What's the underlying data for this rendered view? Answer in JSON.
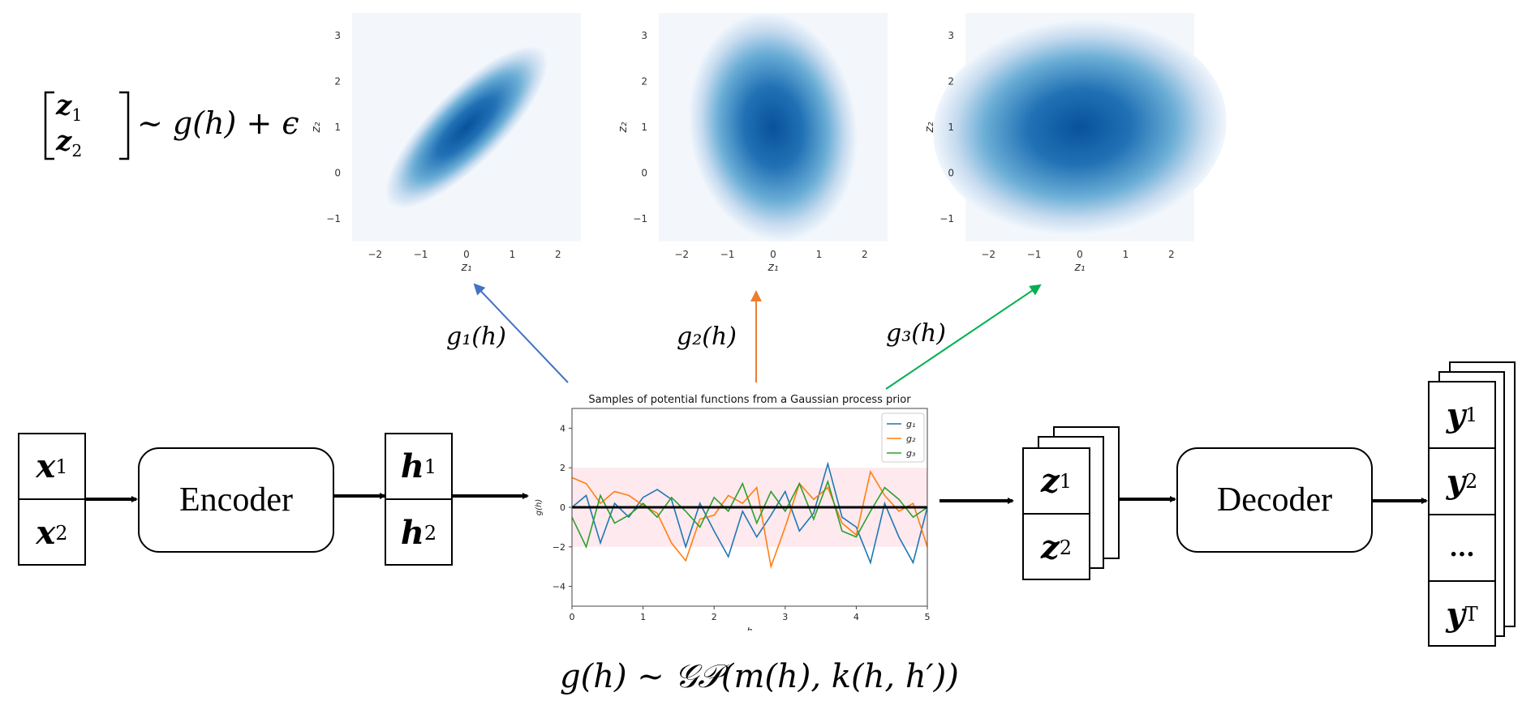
{
  "top_formula": {
    "lhs_1": "z",
    "lhs_1_sub": "1",
    "lhs_2": "z",
    "lhs_2_sub": "2",
    "rhs": "~ g(h) + ϵ"
  },
  "contour_plots": [
    {
      "xlabel": "z₁",
      "ylabel": "z₂",
      "x_ticks": [
        "−2",
        "−1",
        "0",
        "1",
        "2"
      ],
      "y_ticks": [
        "3",
        "2",
        "1",
        "0",
        "−1"
      ],
      "color": "#08519c"
    },
    {
      "xlabel": "z₁",
      "ylabel": "z₂",
      "x_ticks": [
        "−2",
        "−1",
        "0",
        "1",
        "2"
      ],
      "y_ticks": [
        "3",
        "2",
        "1",
        "0",
        "−1"
      ],
      "color": "#08519c"
    },
    {
      "xlabel": "z₁",
      "ylabel": "z₂",
      "x_ticks": [
        "−2",
        "−1",
        "0",
        "1",
        "2"
      ],
      "y_ticks": [
        "3",
        "2",
        "1",
        "0",
        "−1"
      ],
      "color": "#08519c"
    }
  ],
  "arrow_labels": [
    "g₁(h)",
    "g₂(h)",
    "g₃(h)"
  ],
  "arrow_colors": [
    "#4472c4",
    "#ed7d31",
    "#00b050"
  ],
  "input_box": {
    "cells": [
      {
        "v": "x",
        "s": "1"
      },
      {
        "v": "x",
        "s": "2"
      }
    ]
  },
  "encoder": {
    "label": "Encoder"
  },
  "hidden_box": {
    "cells": [
      {
        "v": "h",
        "s": "1"
      },
      {
        "v": "h",
        "s": "2"
      }
    ]
  },
  "latent_box": {
    "cells": [
      {
        "v": "z",
        "s": "1"
      },
      {
        "v": "z",
        "s": "2"
      }
    ]
  },
  "decoder": {
    "label": "Decoder"
  },
  "output_box": {
    "cells": [
      {
        "v": "y",
        "s": "1"
      },
      {
        "v": "y",
        "s": "2"
      },
      {
        "v": "...",
        "s": ""
      },
      {
        "v": "y",
        "s": "T"
      }
    ]
  },
  "bottom_formula": {
    "text": "g(h) ~ 𝒢𝒫(m(h), k(h, h′))"
  },
  "chart_data": {
    "type": "line",
    "title": "Samples of potential functions from a Gaussian process prior",
    "xlabel": "h",
    "ylabel": "g(h)",
    "xlim": [
      0,
      5
    ],
    "ylim": [
      -5,
      5
    ],
    "x_ticks": [
      "0",
      "1",
      "2",
      "3",
      "4",
      "5"
    ],
    "y_ticks": [
      "4",
      "2",
      "0",
      "−2",
      "−4"
    ],
    "band": [
      -2,
      2
    ],
    "mean_line": 0,
    "legend": [
      "g₁",
      "g₂",
      "g₃"
    ],
    "x": [
      0,
      0.2,
      0.4,
      0.6,
      0.8,
      1.0,
      1.2,
      1.4,
      1.6,
      1.8,
      2.0,
      2.2,
      2.4,
      2.6,
      2.8,
      3.0,
      3.2,
      3.4,
      3.6,
      3.8,
      4.0,
      4.2,
      4.4,
      4.6,
      4.8,
      5.0
    ],
    "series": [
      {
        "name": "g₁",
        "color": "#1f77b4",
        "values": [
          0.0,
          0.6,
          -1.8,
          0.2,
          -0.5,
          0.5,
          0.9,
          0.4,
          -2.0,
          0.2,
          -1.2,
          -2.5,
          -0.2,
          -1.5,
          -0.4,
          0.8,
          -1.2,
          -0.3,
          2.2,
          -0.5,
          -1.0,
          -2.8,
          0.2,
          -1.5,
          -2.8,
          0.0
        ]
      },
      {
        "name": "g₂",
        "color": "#ff7f0e",
        "values": [
          1.5,
          1.2,
          0.2,
          0.8,
          0.6,
          0.1,
          -0.3,
          -1.8,
          -2.7,
          -0.6,
          -0.4,
          0.6,
          0.2,
          1.0,
          -3.0,
          -1.0,
          1.2,
          0.4,
          1.0,
          -0.8,
          -1.4,
          1.8,
          0.6,
          -0.2,
          0.2,
          -2.0
        ]
      },
      {
        "name": "g₃",
        "color": "#2ca02c",
        "values": [
          -0.5,
          -2.0,
          0.6,
          -0.8,
          -0.4,
          0.2,
          -0.5,
          0.5,
          -0.2,
          -1.0,
          0.5,
          -0.2,
          1.2,
          -0.8,
          0.8,
          -0.2,
          1.2,
          -0.6,
          1.3,
          -1.2,
          -1.5,
          -0.2,
          1.0,
          0.4,
          -0.5,
          0.0
        ]
      }
    ]
  }
}
